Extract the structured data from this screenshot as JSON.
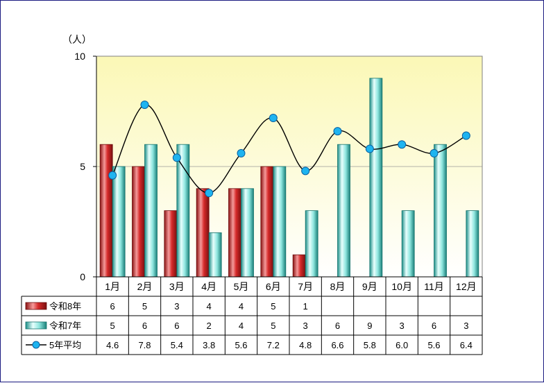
{
  "chart_data": {
    "type": "bar",
    "ylabel": "（人）",
    "ylim": [
      0,
      10
    ],
    "yticks": [
      0,
      5,
      10
    ],
    "categories": [
      "1月",
      "2月",
      "3月",
      "4月",
      "5月",
      "6月",
      "7月",
      "8月",
      "9月",
      "10月",
      "11月",
      "12月"
    ],
    "series": [
      {
        "name": "令和8年",
        "type": "bar",
        "color": "#d62a2a",
        "values": [
          6,
          5,
          3,
          4,
          4,
          5,
          1,
          null,
          null,
          null,
          null,
          null
        ],
        "labels": [
          "6",
          "5",
          "3",
          "4",
          "4",
          "5",
          "1",
          "",
          "",
          "",
          "",
          ""
        ]
      },
      {
        "name": "令和7年",
        "type": "bar",
        "color": "#5fd1c8",
        "values": [
          5,
          6,
          6,
          2,
          4,
          5,
          3,
          6,
          9,
          3,
          6,
          3
        ],
        "labels": [
          "5",
          "6",
          "6",
          "2",
          "4",
          "5",
          "3",
          "6",
          "9",
          "3",
          "6",
          "3"
        ]
      },
      {
        "name": "5年平均",
        "type": "line",
        "color": "#1eb4f0",
        "values": [
          4.6,
          7.8,
          5.4,
          3.8,
          5.6,
          7.2,
          4.8,
          6.6,
          5.8,
          6.0,
          5.6,
          6.4
        ],
        "labels": [
          "4.6",
          "7.8",
          "5.4",
          "3.8",
          "5.6",
          "7.2",
          "4.8",
          "6.6",
          "5.8",
          "6.0",
          "5.6",
          "6.4"
        ]
      }
    ],
    "data_table": true,
    "grid": true
  }
}
